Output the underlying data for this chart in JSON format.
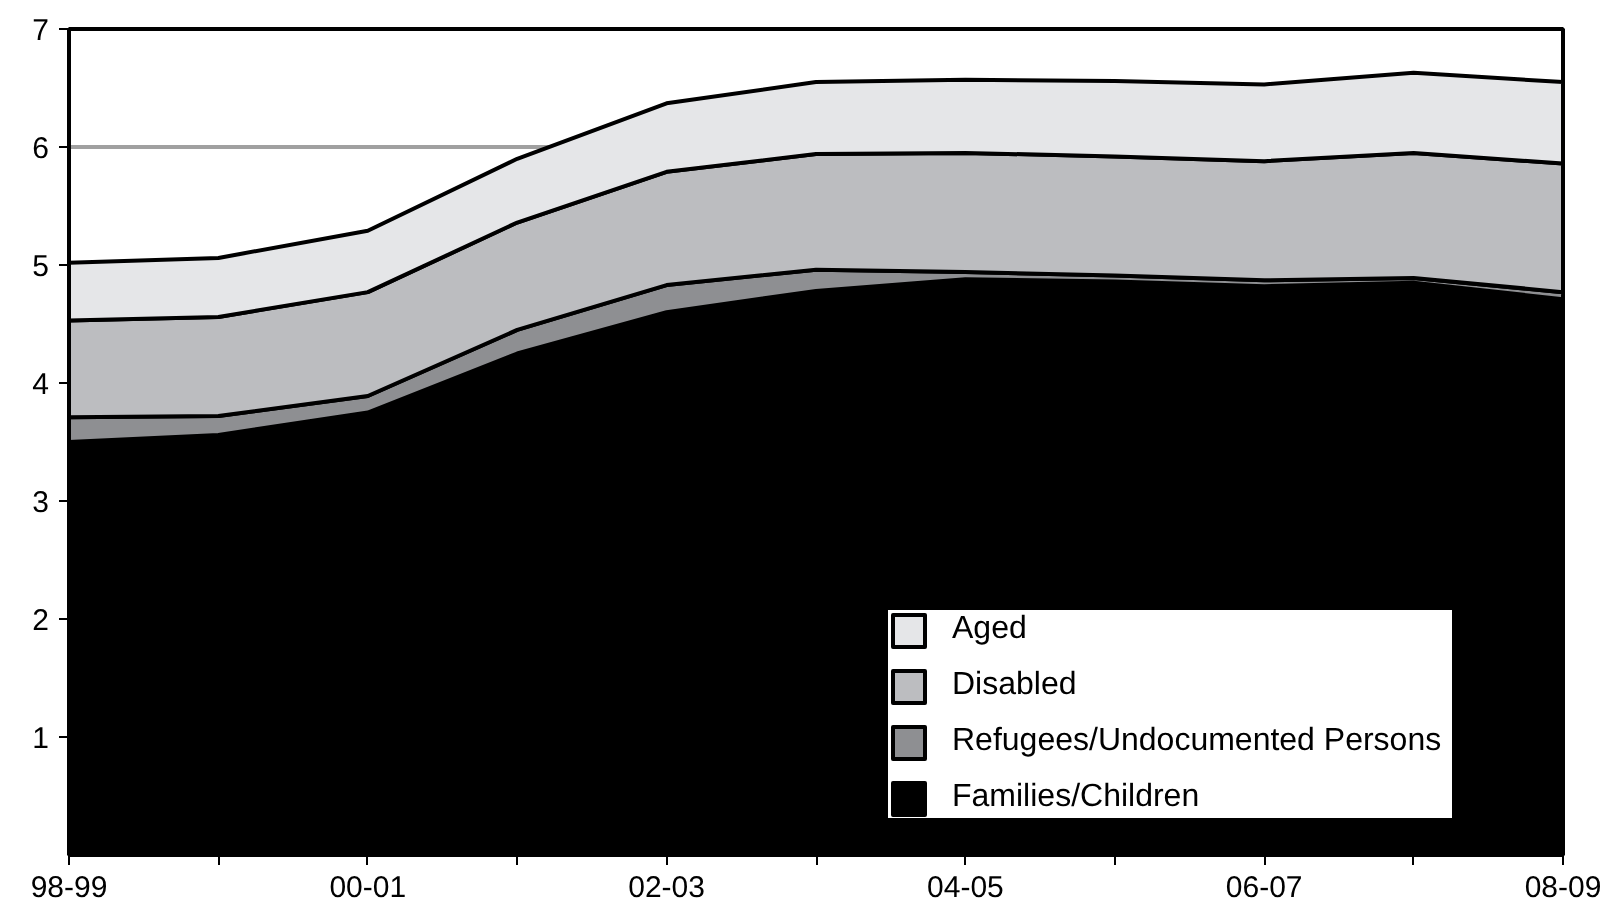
{
  "chart_data": {
    "type": "area",
    "stacked": true,
    "categories": [
      "98-99",
      null,
      "00-01",
      null,
      "02-03",
      null,
      "04-05",
      null,
      "06-07",
      null,
      "08-09"
    ],
    "series": [
      {
        "name": "Families/Children",
        "color": "#000000",
        "values": [
          3.5,
          3.56,
          3.75,
          4.25,
          4.6,
          4.78,
          4.88,
          4.86,
          4.82,
          4.85,
          4.71
        ]
      },
      {
        "name": "Refugees/Undocumented Persons",
        "color": "#8e8f92",
        "values": [
          0.21,
          0.16,
          0.14,
          0.2,
          0.23,
          0.18,
          0.06,
          0.05,
          0.05,
          0.04,
          0.06
        ]
      },
      {
        "name": "Disabled",
        "color": "#bcbdc0",
        "values": [
          0.82,
          0.84,
          0.88,
          0.91,
          0.96,
          0.98,
          1.01,
          1.01,
          1.01,
          1.06,
          1.09
        ]
      },
      {
        "name": "Aged",
        "color": "#e5e6e8",
        "values": [
          0.49,
          0.5,
          0.52,
          0.54,
          0.58,
          0.61,
          0.62,
          0.64,
          0.65,
          0.68,
          0.69
        ]
      }
    ],
    "ylim": [
      0,
      7
    ],
    "yticks": [
      1,
      2,
      3,
      4,
      5,
      6,
      7
    ],
    "ref_lines": [
      {
        "axis": "y",
        "value": 6,
        "color": "#a0a0a0"
      }
    ],
    "legend": "bottom right"
  }
}
